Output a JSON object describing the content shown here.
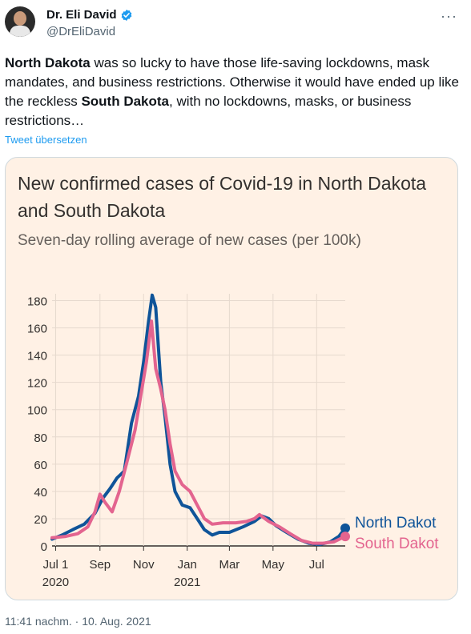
{
  "user": {
    "name": "Dr. Eli David",
    "handle": "@DrEliDavid",
    "verified": true
  },
  "tweet": {
    "text_parts": [
      {
        "text": "North Dakota",
        "bold": true
      },
      {
        "text": " was so lucky to have those life-saving lockdowns, mask mandates, and business restrictions. Otherwise it would have ended up like the reckless ",
        "bold": false
      },
      {
        "text": "South Dakota",
        "bold": true
      },
      {
        "text": ", with no lockdowns, masks, or business restrictions…",
        "bold": false
      }
    ],
    "translate_label": "Tweet übersetzen",
    "timestamp": "11:41 nachm. · 10. Aug. 2021"
  },
  "more_icon": "more-dots-icon",
  "chart_data": {
    "type": "line",
    "title": "New confirmed cases of Covid-19 in North Dakota and South Dakota",
    "subtitle": "Seven-day rolling average of new cases (per 100k)",
    "ylim": [
      0,
      185
    ],
    "yticks": [
      0,
      20,
      40,
      60,
      80,
      100,
      120,
      140,
      160,
      180
    ],
    "xlim": [
      "2020-06-26",
      "2021-08-10"
    ],
    "xticks": [
      {
        "date": "2020-07-01",
        "label": "Jul 1",
        "sub": "2020"
      },
      {
        "date": "2020-09-01",
        "label": "Sep",
        "sub": ""
      },
      {
        "date": "2020-11-01",
        "label": "Nov",
        "sub": ""
      },
      {
        "date": "2021-01-01",
        "label": "Jan",
        "sub": "2021"
      },
      {
        "date": "2021-03-01",
        "label": "Mar",
        "sub": ""
      },
      {
        "date": "2021-05-01",
        "label": "May",
        "sub": ""
      },
      {
        "date": "2021-07-01",
        "label": "Jul",
        "sub": ""
      }
    ],
    "grid": true,
    "series": [
      {
        "name": "North Dakot",
        "color": "#0f5499",
        "points": [
          [
            "2020-06-26",
            5
          ],
          [
            "2020-07-10",
            8
          ],
          [
            "2020-07-25",
            12
          ],
          [
            "2020-08-10",
            16
          ],
          [
            "2020-08-25",
            24
          ],
          [
            "2020-09-05",
            35
          ],
          [
            "2020-09-15",
            42
          ],
          [
            "2020-09-25",
            50
          ],
          [
            "2020-10-05",
            55
          ],
          [
            "2020-10-15",
            90
          ],
          [
            "2020-10-25",
            110
          ],
          [
            "2020-11-01",
            135
          ],
          [
            "2020-11-08",
            165
          ],
          [
            "2020-11-13",
            184
          ],
          [
            "2020-11-18",
            175
          ],
          [
            "2020-11-25",
            120
          ],
          [
            "2020-12-01",
            95
          ],
          [
            "2020-12-08",
            60
          ],
          [
            "2020-12-15",
            40
          ],
          [
            "2020-12-25",
            30
          ],
          [
            "2021-01-05",
            28
          ],
          [
            "2021-01-15",
            20
          ],
          [
            "2021-01-25",
            12
          ],
          [
            "2021-02-05",
            8
          ],
          [
            "2021-02-15",
            10
          ],
          [
            "2021-03-01",
            10
          ],
          [
            "2021-03-20",
            14
          ],
          [
            "2021-04-05",
            18
          ],
          [
            "2021-04-15",
            22
          ],
          [
            "2021-04-25",
            20
          ],
          [
            "2021-05-05",
            15
          ],
          [
            "2021-05-20",
            10
          ],
          [
            "2021-06-05",
            5
          ],
          [
            "2021-06-20",
            2
          ],
          [
            "2021-07-05",
            1
          ],
          [
            "2021-07-20",
            3
          ],
          [
            "2021-08-01",
            7
          ],
          [
            "2021-08-10",
            13
          ]
        ]
      },
      {
        "name": "South Dakot",
        "color": "#e3648f",
        "points": [
          [
            "2020-06-26",
            6
          ],
          [
            "2020-07-15",
            7
          ],
          [
            "2020-08-01",
            9
          ],
          [
            "2020-08-15",
            14
          ],
          [
            "2020-08-25",
            25
          ],
          [
            "2020-09-01",
            38
          ],
          [
            "2020-09-08",
            32
          ],
          [
            "2020-09-18",
            25
          ],
          [
            "2020-09-28",
            40
          ],
          [
            "2020-10-08",
            60
          ],
          [
            "2020-10-20",
            85
          ],
          [
            "2020-10-28",
            110
          ],
          [
            "2020-11-05",
            135
          ],
          [
            "2020-11-12",
            165
          ],
          [
            "2020-11-18",
            130
          ],
          [
            "2020-11-25",
            115
          ],
          [
            "2020-12-01",
            100
          ],
          [
            "2020-12-08",
            75
          ],
          [
            "2020-12-15",
            55
          ],
          [
            "2020-12-25",
            45
          ],
          [
            "2021-01-05",
            40
          ],
          [
            "2021-01-15",
            30
          ],
          [
            "2021-01-25",
            20
          ],
          [
            "2021-02-05",
            16
          ],
          [
            "2021-02-20",
            17
          ],
          [
            "2021-03-10",
            17
          ],
          [
            "2021-03-25",
            18
          ],
          [
            "2021-04-05",
            20
          ],
          [
            "2021-04-12",
            23
          ],
          [
            "2021-04-25",
            18
          ],
          [
            "2021-05-10",
            14
          ],
          [
            "2021-05-25",
            9
          ],
          [
            "2021-06-10",
            4
          ],
          [
            "2021-06-25",
            2
          ],
          [
            "2021-07-10",
            2
          ],
          [
            "2021-07-25",
            3
          ],
          [
            "2021-08-10",
            7
          ]
        ]
      }
    ]
  }
}
